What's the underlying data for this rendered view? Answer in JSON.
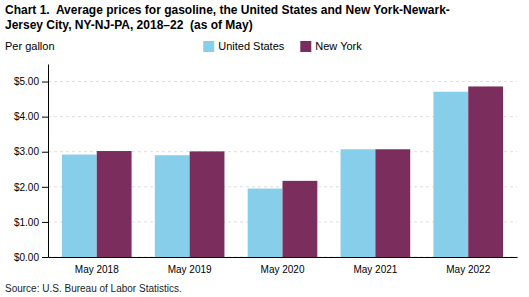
{
  "chart_data": {
    "type": "bar",
    "title": "Chart 1.  Average prices for gasoline, the United States and New York-Newark-",
    "subtitle": "Jersey City, NY-NJ-PA, 2018–22  (as of May)",
    "ylabel": "Per gallon",
    "source": "Source: U.S. Bureau of Labor Statistics.",
    "categories": [
      "May 2018",
      "May 2019",
      "May 2020",
      "May 2021",
      "May 2022"
    ],
    "series": [
      {
        "name": "United States",
        "color": "#87CEEB",
        "values": [
          2.92,
          2.9,
          1.95,
          3.07,
          4.71
        ]
      },
      {
        "name": "New York",
        "color": "#7B2D5E",
        "values": [
          3.02,
          3.01,
          2.17,
          3.07,
          4.86
        ]
      }
    ],
    "ylim": [
      0,
      5.5
    ],
    "yticks": [
      {
        "value": 0,
        "label": "$0.00"
      },
      {
        "value": 1,
        "label": "$1.00"
      },
      {
        "value": 2,
        "label": "$2.00"
      },
      {
        "value": 3,
        "label": "$3.00"
      },
      {
        "value": 4,
        "label": "$4.00"
      },
      {
        "value": 5,
        "label": "$5.00"
      }
    ],
    "grid": true,
    "legend": "top"
  }
}
